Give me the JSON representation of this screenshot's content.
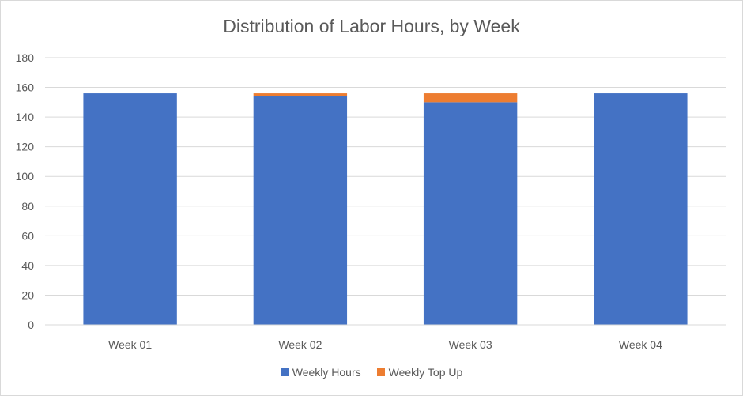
{
  "chart_data": {
    "type": "bar",
    "stacked": true,
    "title": "Distribution of Labor Hours, by Week",
    "xlabel": "",
    "ylabel": "",
    "categories": [
      "Week 01",
      "Week 02",
      "Week 03",
      "Week 04"
    ],
    "series": [
      {
        "name": "Weekly Hours",
        "color": "#4472c4",
        "values": [
          156,
          154,
          150,
          156
        ]
      },
      {
        "name": "Weekly Top Up",
        "color": "#ed7d31",
        "values": [
          0,
          2,
          6,
          0
        ]
      }
    ],
    "ylim": [
      0,
      180
    ],
    "yticks": [
      0,
      20,
      40,
      60,
      80,
      100,
      120,
      140,
      160,
      180
    ],
    "grid": true,
    "legend": "bottom-center"
  }
}
